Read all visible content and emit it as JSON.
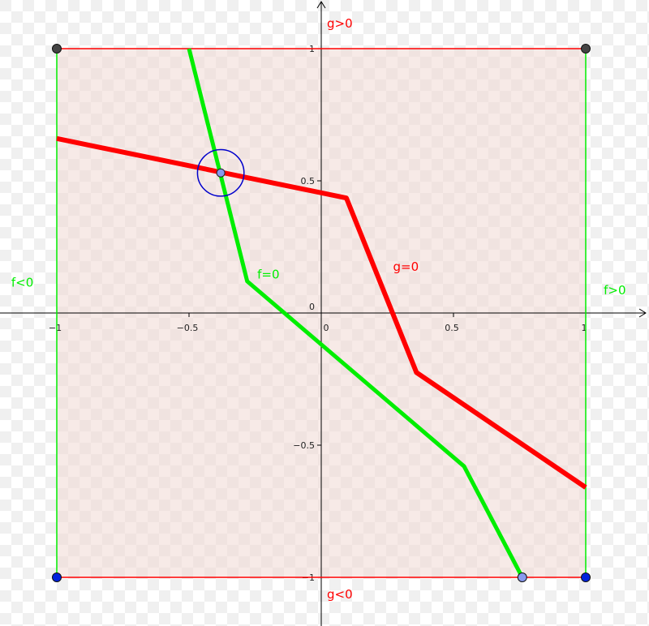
{
  "diagram": {
    "x_range": [
      -1.2,
      1.25
    ],
    "y_range": [
      -1.18,
      1.18
    ],
    "x_ticks": [
      {
        "value": -1,
        "label": "−1"
      },
      {
        "value": -0.5,
        "label": "−0.5"
      },
      {
        "value": 0,
        "label": "0"
      },
      {
        "value": 0.5,
        "label": "0.5"
      },
      {
        "value": 1,
        "label": "1"
      }
    ],
    "y_ticks": [
      {
        "value": 1,
        "label": "1"
      },
      {
        "value": 0.5,
        "label": "0.5"
      },
      {
        "value": 0,
        "label": "0"
      },
      {
        "value": -0.5,
        "label": "−0.5"
      },
      {
        "value": -1,
        "label": "−1"
      }
    ],
    "colors": {
      "f": "#00ee00",
      "g": "#ff0000",
      "region_fill": "#f0d8d4",
      "circle": "#0000cc",
      "point_light": "#8899ee",
      "point_dark": "#444444",
      "point_blue": "#0022dd"
    },
    "square": {
      "corners": [
        [
          -1,
          1
        ],
        [
          1,
          1
        ],
        [
          1,
          -1
        ],
        [
          -1,
          -1
        ]
      ]
    },
    "f_curve": {
      "name": "f=0",
      "points": [
        [
          -0.5,
          1
        ],
        [
          -0.28,
          0.12
        ],
        [
          0.54,
          -0.58
        ],
        [
          0.76,
          -1
        ]
      ]
    },
    "g_curve": {
      "name": "g=0",
      "points": [
        [
          -1,
          0.66
        ],
        [
          0.095,
          0.435
        ],
        [
          0.36,
          -0.225
        ],
        [
          1,
          -0.66
        ]
      ]
    },
    "intersection": {
      "point": [
        -0.38,
        0.53
      ],
      "circle_radius": 0.088
    },
    "labels": {
      "g_pos": {
        "text": "g>0",
        "at": [
          0.07,
          1.08
        ]
      },
      "g_neg": {
        "text": "g<0",
        "at": [
          0.07,
          -1.08
        ]
      },
      "f_neg": {
        "text": "f<0",
        "at": [
          -1.13,
          0.1
        ]
      },
      "f_pos": {
        "text": "f>0",
        "at": [
          1.11,
          0.07
        ]
      },
      "f_zero": {
        "text": "f=0",
        "at": [
          -0.2,
          0.13
        ]
      },
      "g_zero": {
        "text": "g=0",
        "at": [
          0.32,
          0.16
        ]
      }
    }
  }
}
